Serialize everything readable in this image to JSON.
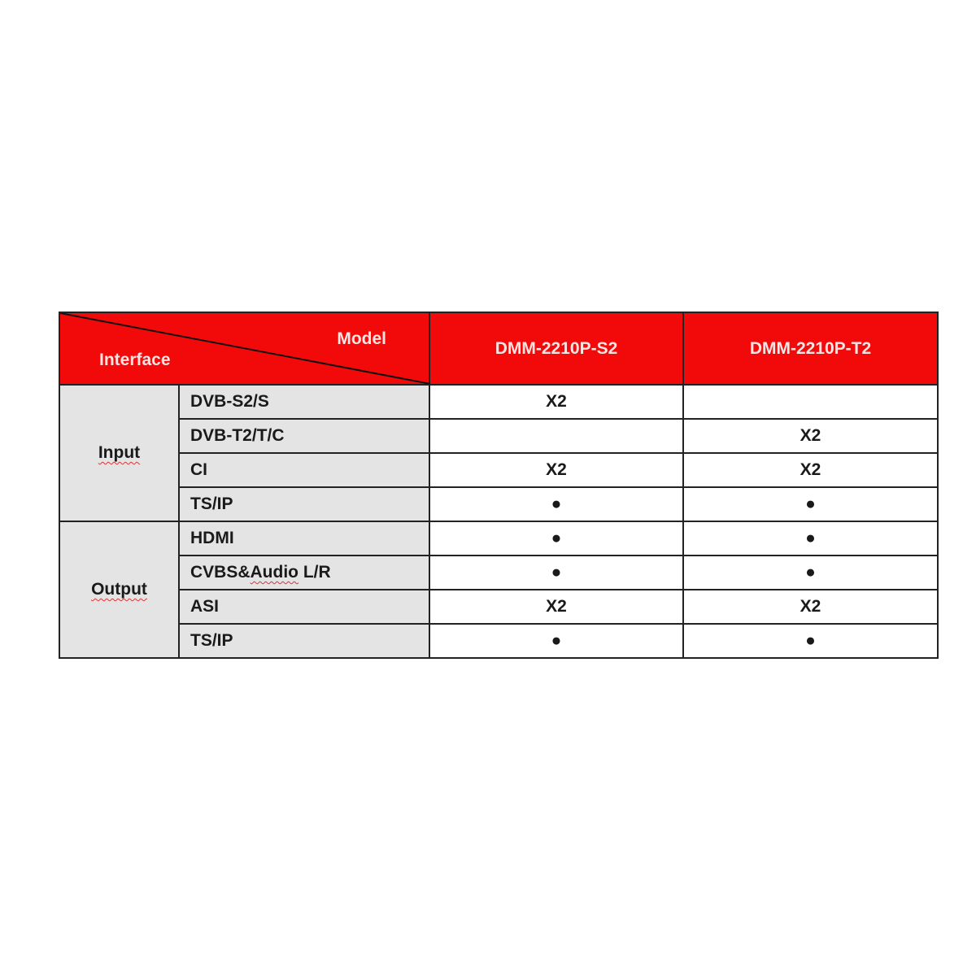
{
  "header": {
    "corner_top": "Model",
    "corner_bottom": "Interface",
    "models": [
      "DMM-2210P-S2",
      "DMM-2210P-T2"
    ]
  },
  "groups": [
    {
      "name": "Input",
      "rows": [
        {
          "label": "DVB-S2/S",
          "values": [
            "X2",
            ""
          ]
        },
        {
          "label": "DVB-T2/T/C",
          "values": [
            "",
            "X2"
          ]
        },
        {
          "label": "CI",
          "values": [
            "X2",
            "X2"
          ]
        },
        {
          "label": "TS/IP",
          "values": [
            "●",
            "●"
          ]
        }
      ]
    },
    {
      "name": "Output",
      "rows": [
        {
          "label": "HDMI",
          "values": [
            "●",
            "●"
          ]
        },
        {
          "label_a": "CVBS&",
          "label_b": "Audio",
          "label_c": " L/R",
          "values": [
            "●",
            "●"
          ]
        },
        {
          "label": "ASI",
          "values": [
            "X2",
            "X2"
          ]
        },
        {
          "label": "TS/IP",
          "values": [
            "●",
            "●"
          ]
        }
      ]
    }
  ],
  "colors": {
    "header_bg": "#f20a0a",
    "label_bg": "#e4e4e4"
  }
}
